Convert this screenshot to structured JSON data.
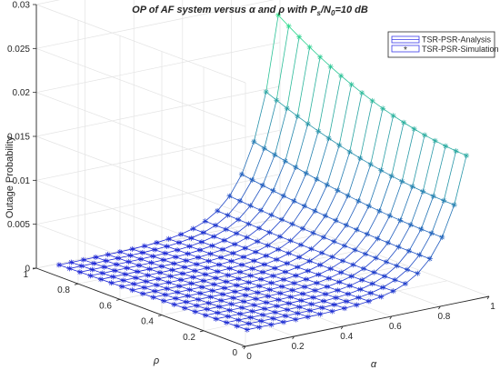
{
  "chart_data": {
    "type": "surface",
    "title": "OP of AF system versus α and ρ with P",
    "title_sub": "s",
    "title_mid": "/N",
    "title_sub2": "0",
    "title_end": "=10 dB",
    "xlabel": "α",
    "ylabel": "ρ",
    "zlabel": "Outage Probability",
    "x_ticks": [
      "0",
      "0.2",
      "0.4",
      "0.6",
      "0.8",
      "1"
    ],
    "y_ticks": [
      "0",
      "0.2",
      "0.4",
      "0.6",
      "0.8",
      "1"
    ],
    "z_ticks": [
      "0",
      "0.005",
      "0.01",
      "0.015",
      "0.02",
      "0.025",
      "0.03"
    ],
    "xlim": [
      0,
      1
    ],
    "ylim": [
      0,
      1
    ],
    "zlim": [
      0,
      0.03
    ],
    "grid": true,
    "legend_position": "top-right",
    "series": [
      {
        "name": "TSR-PSR-Analysis",
        "style": "mesh"
      },
      {
        "name": "TSR-PSR-Simulation",
        "style": "asterisk-markers"
      }
    ],
    "x": [
      0.05,
      0.1,
      0.15,
      0.2,
      0.25,
      0.3,
      0.35,
      0.4,
      0.45,
      0.5,
      0.55,
      0.6,
      0.65,
      0.7,
      0.75,
      0.8,
      0.85,
      0.9,
      0.95
    ],
    "y": [
      0.05,
      0.1,
      0.15,
      0.2,
      0.25,
      0.3,
      0.35,
      0.4,
      0.45,
      0.5,
      0.55,
      0.6,
      0.65,
      0.7,
      0.75,
      0.8,
      0.85,
      0.9,
      0.95
    ],
    "z_corner_values": {
      "alpha_0.05_rho_0.05": 0.0012,
      "alpha_0.95_rho_0.05": 0.0159,
      "alpha_0.95_rho_0.5": 0.0128,
      "alpha_0.95_rho_0.95": 0.0238,
      "alpha_0.05_rho_0.95": 0.0005
    },
    "colors": {
      "low": "#1a1ad9",
      "high": "#2ee08a",
      "axis": "#262626",
      "grid": "#e3e3e3"
    }
  }
}
